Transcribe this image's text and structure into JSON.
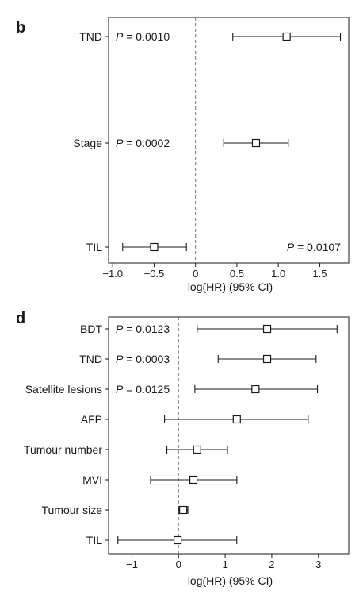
{
  "chart_data": [
    {
      "type": "forest",
      "panel_label": "b",
      "xlabel": "log(HR) (95% CI)",
      "xlim": [
        -1.05,
        1.85
      ],
      "xticks": [
        -1.0,
        -0.5,
        0,
        0.5,
        1.0,
        1.5
      ],
      "xtick_labels": [
        "−1.0",
        "−0.5",
        "0",
        "0.5",
        "1.0",
        "1.5"
      ],
      "reference_line": 0,
      "rows": [
        {
          "label": "TND",
          "estimate": 1.1,
          "lower": 0.45,
          "upper": 1.75,
          "p_prefix": "P",
          "p_value": " = 0.0010",
          "p_position": "left"
        },
        {
          "label": "Stage",
          "estimate": 0.73,
          "lower": 0.34,
          "upper": 1.12,
          "p_prefix": "P",
          "p_value": " = 0.0002",
          "p_position": "left"
        },
        {
          "label": "TIL",
          "estimate": -0.5,
          "lower": -0.88,
          "upper": -0.11,
          "p_prefix": "P",
          "p_value": " = 0.0107",
          "p_position": "right"
        }
      ]
    },
    {
      "type": "forest",
      "panel_label": "d",
      "xlabel": "log(HR) (95% CI)",
      "xlim": [
        -1.5,
        3.65
      ],
      "xticks": [
        -1,
        0,
        1,
        2,
        3
      ],
      "xtick_labels": [
        "−1",
        "0",
        "1",
        "2",
        "3"
      ],
      "reference_line": 0,
      "rows": [
        {
          "label": "BDT",
          "estimate": 1.9,
          "lower": 0.4,
          "upper": 3.4,
          "p_prefix": "P",
          "p_value": " = 0.0123",
          "p_position": "left"
        },
        {
          "label": "TND",
          "estimate": 1.9,
          "lower": 0.85,
          "upper": 2.95,
          "p_prefix": "P",
          "p_value": " = 0.0003",
          "p_position": "left"
        },
        {
          "label": "Satellite lesions",
          "estimate": 1.65,
          "lower": 0.35,
          "upper": 2.98,
          "p_prefix": "P",
          "p_value": " = 0.0125",
          "p_position": "left"
        },
        {
          "label": "AFP",
          "estimate": 1.25,
          "lower": -0.3,
          "upper": 2.78,
          "p_prefix": "",
          "p_value": "",
          "p_position": ""
        },
        {
          "label": "Tumour number",
          "estimate": 0.4,
          "lower": -0.25,
          "upper": 1.05,
          "p_prefix": "",
          "p_value": "",
          "p_position": ""
        },
        {
          "label": "MVI",
          "estimate": 0.32,
          "lower": -0.6,
          "upper": 1.25,
          "p_prefix": "",
          "p_value": "",
          "p_position": ""
        },
        {
          "label": "Tumour size",
          "estimate": 0.1,
          "lower": 0.0,
          "upper": 0.2,
          "p_prefix": "",
          "p_value": "",
          "p_position": ""
        },
        {
          "label": "TIL",
          "estimate": -0.02,
          "lower": -1.3,
          "upper": 1.25,
          "p_prefix": "",
          "p_value": "",
          "p_position": ""
        }
      ]
    }
  ],
  "colors": {
    "ink": "#1a1a1a",
    "background": "#ffffff",
    "reference_line": "#666666"
  }
}
